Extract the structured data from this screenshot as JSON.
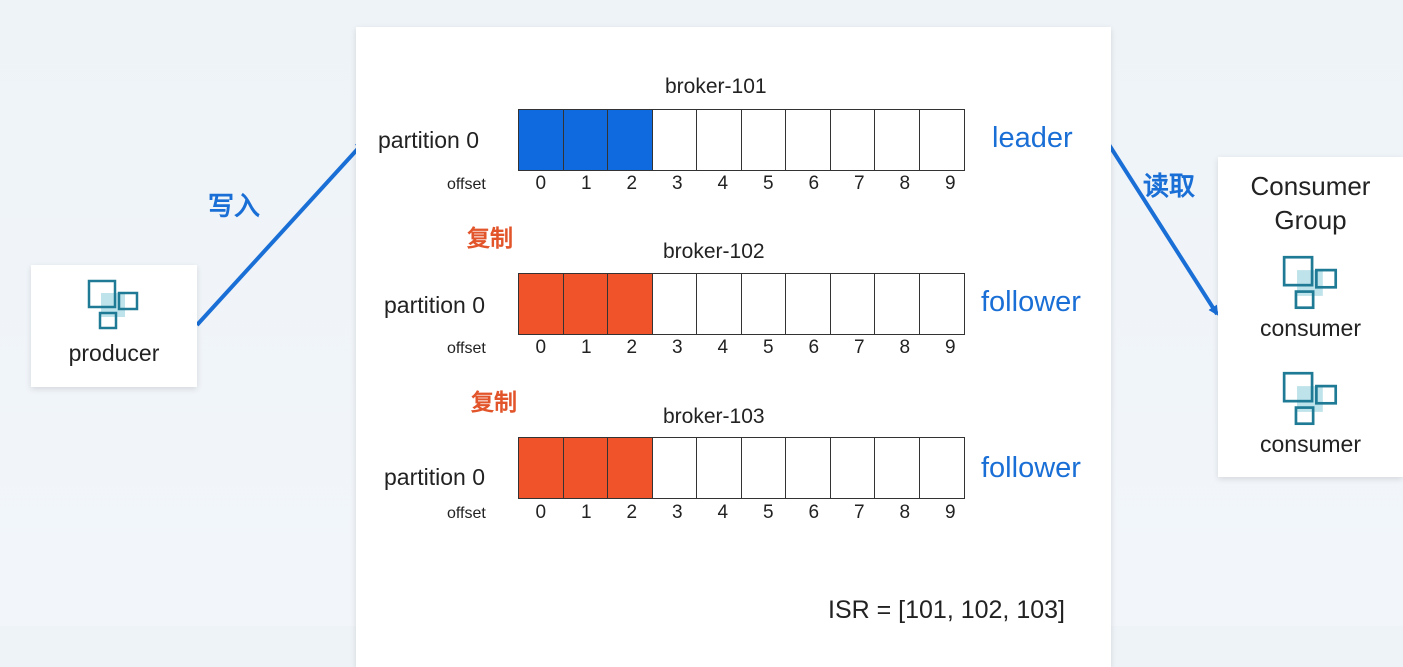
{
  "producer": {
    "label": "producer",
    "icon": "app-blocks-icon"
  },
  "edges": {
    "write": "写入",
    "read": "读取",
    "replicate_1": "复制",
    "replicate_2": "复制"
  },
  "brokers": [
    {
      "name": "broker-101",
      "partition": "partition 0",
      "role": "leader",
      "offset_label": "offset",
      "filled": 3,
      "color": "#0f6ae0"
    },
    {
      "name": "broker-102",
      "partition": "partition 0",
      "role": "follower",
      "offset_label": "offset",
      "filled": 3,
      "color": "#f0532a"
    },
    {
      "name": "broker-103",
      "partition": "partition 0",
      "role": "follower",
      "offset_label": "offset",
      "filled": 3,
      "color": "#f0532a"
    }
  ],
  "offsets": [
    "0",
    "1",
    "2",
    "3",
    "4",
    "5",
    "6",
    "7",
    "8",
    "9"
  ],
  "isr": "ISR = [101, 102, 103]",
  "consumer_group": {
    "title_line1": "Consumer",
    "title_line2": "Group",
    "consumers": [
      "consumer",
      "consumer"
    ]
  },
  "colors": {
    "leader_blue": "#0f6ae0",
    "follower_red": "#f0532a",
    "label_blue": "#1a6fd6",
    "label_red": "#e2542a"
  }
}
